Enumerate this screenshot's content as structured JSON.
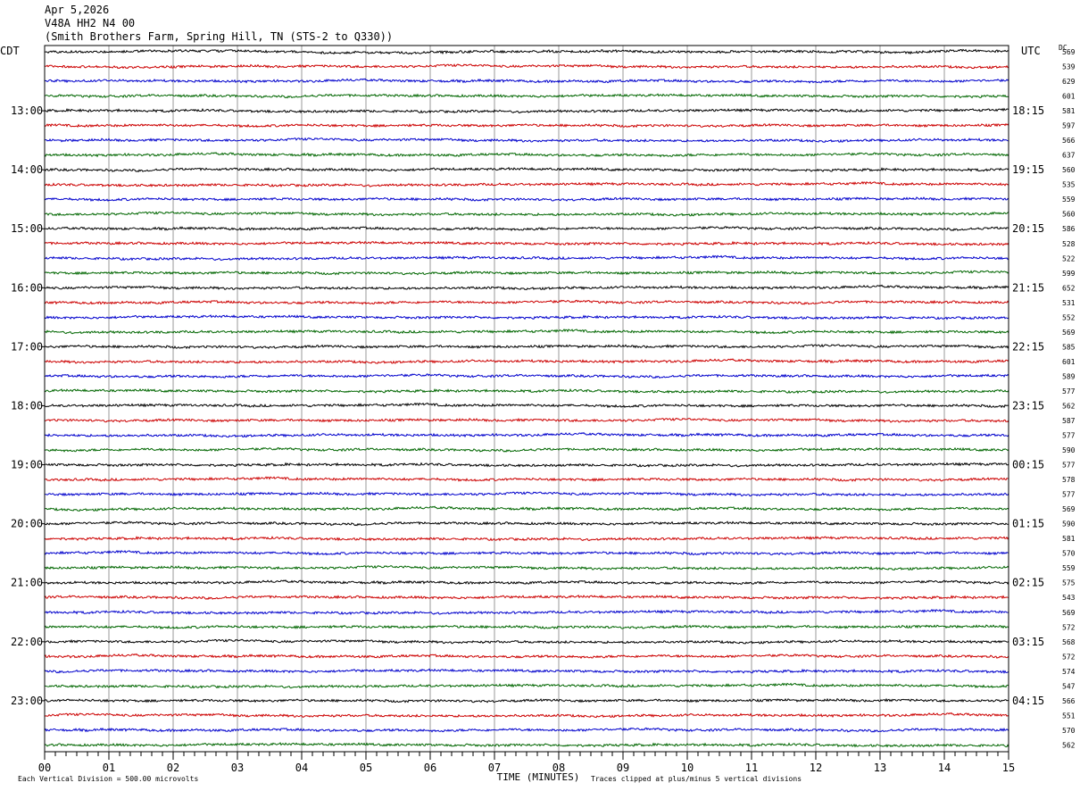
{
  "header": {
    "date": "Apr 5,2026",
    "station": "V48A HH2 N4 00",
    "location": "(Smith Brothers Farm, Spring Hill, TN (STS-2 to Q330))"
  },
  "chart_data": {
    "type": "line",
    "title": "",
    "left_axis_label": "CDT",
    "right_axis_label": "UTC",
    "dc_label": "DC",
    "xlabel": "TIME (MINUTES)",
    "xlim": [
      0,
      15
    ],
    "x_ticks": [
      "00",
      "01",
      "02",
      "03",
      "04",
      "05",
      "06",
      "07",
      "08",
      "09",
      "10",
      "11",
      "12",
      "13",
      "14",
      "15"
    ],
    "left_hour_labels": [
      "13:00",
      "14:00",
      "15:00",
      "16:00",
      "17:00",
      "18:00",
      "19:00",
      "20:00",
      "21:00",
      "22:00",
      "23:00"
    ],
    "right_hour_labels": [
      "18:15",
      "19:15",
      "20:15",
      "21:15",
      "22:15",
      "23:15",
      "00:15",
      "01:15",
      "02:15",
      "03:15",
      "04:15"
    ],
    "hour_label_start_row": 4,
    "rows_per_hour": 4,
    "trace_colors": [
      "#000000",
      "#cc0000",
      "#0000cc",
      "#006600"
    ],
    "dc_values": [
      569,
      539,
      629,
      601,
      581,
      597,
      566,
      637,
      560,
      535,
      559,
      560,
      586,
      528,
      522,
      599,
      652,
      531,
      552,
      569,
      585,
      601,
      589,
      577,
      562,
      587,
      577,
      590,
      577,
      578,
      577,
      569,
      590,
      581,
      570,
      559,
      575,
      543,
      569,
      572,
      568,
      572,
      574,
      547,
      566,
      551,
      570,
      562
    ],
    "footer_left": "Each Vertical Division =  500.00 microvolts",
    "footer_right": "Traces clipped at plus/minus 5 vertical divisions"
  }
}
